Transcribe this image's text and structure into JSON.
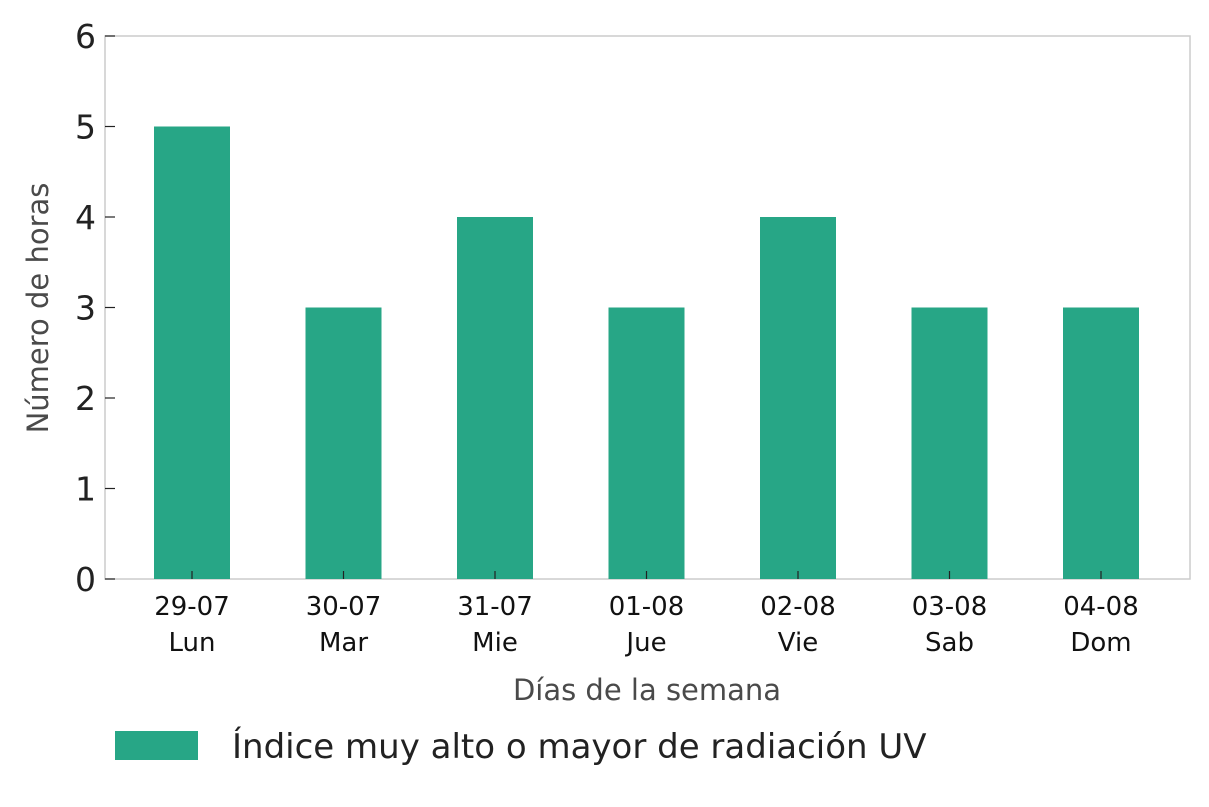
{
  "chart_data": {
    "type": "bar",
    "categories": [
      {
        "date": "29-07",
        "day": "Lun"
      },
      {
        "date": "30-07",
        "day": "Mar"
      },
      {
        "date": "31-07",
        "day": "Mie"
      },
      {
        "date": "01-08",
        "day": "Jue"
      },
      {
        "date": "02-08",
        "day": "Vie"
      },
      {
        "date": "03-08",
        "day": "Sab"
      },
      {
        "date": "04-08",
        "day": "Dom"
      }
    ],
    "series": [
      {
        "name": "Índice muy alto o mayor de radiación UV",
        "color": "#27a686",
        "values": [
          5,
          3,
          4,
          3,
          4,
          3,
          3
        ]
      }
    ],
    "xlabel": "Días de la semana",
    "ylabel": "Número de horas",
    "ylim": [
      0,
      6
    ],
    "yticks": [
      "0",
      "1",
      "2",
      "3",
      "4",
      "5",
      "6"
    ],
    "grid": false,
    "legend_position": "bottom"
  }
}
